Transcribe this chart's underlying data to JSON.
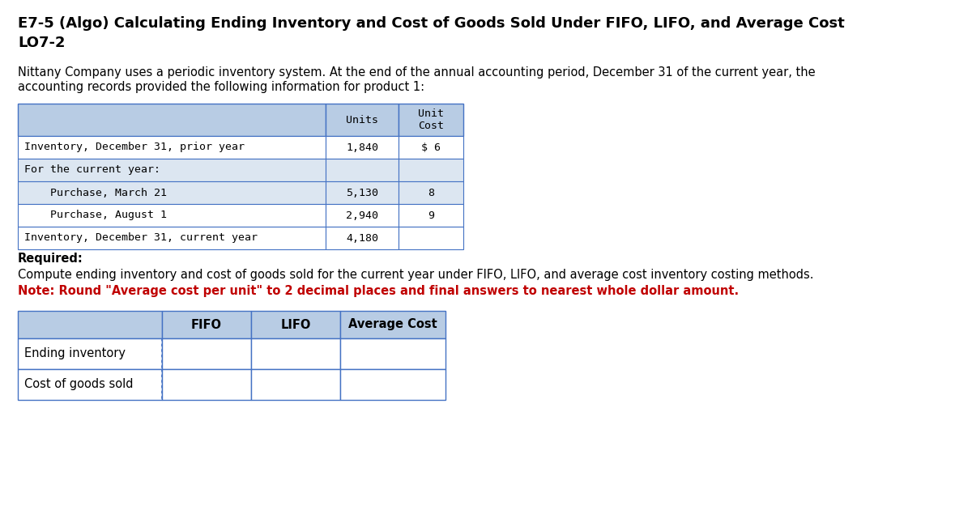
{
  "title_line1": "E7-5 (Algo) Calculating Ending Inventory and Cost of Goods Sold Under FIFO, LIFO, and Average Cost",
  "title_line2": "LO7-2",
  "description_line1": "Nittany Company uses a periodic inventory system. At the end of the annual accounting period, December 31 of the current year, the",
  "description_line2": "accounting records provided the following information for product 1:",
  "table1_header": [
    "",
    "Units",
    "Unit\nCost"
  ],
  "table1_rows": [
    [
      "Inventory, December 31, prior year",
      "1,840",
      "$ 6"
    ],
    [
      "For the current year:",
      "",
      ""
    ],
    [
      "    Purchase, March 21",
      "5,130",
      "8"
    ],
    [
      "    Purchase, August 1",
      "2,940",
      "9"
    ],
    [
      "Inventory, December 31, current year",
      "4,180",
      ""
    ]
  ],
  "required_label": "Required:",
  "note_line1": "Compute ending inventory and cost of goods sold for the current year under FIFO, LIFO, and average cost inventory costing methods.",
  "note_line2": "Note: Round \"Average cost per unit\" to 2 decimal places and final answers to nearest whole dollar amount.",
  "table2_header": [
    "",
    "FIFO",
    "LIFO",
    "Average Cost"
  ],
  "table2_rows": [
    [
      "Ending inventory",
      "",
      "",
      ""
    ],
    [
      "Cost of goods sold",
      "",
      "",
      ""
    ]
  ],
  "header_bg": "#b8cce4",
  "table1_row_bg_alt": "#dce6f1",
  "table1_row_bg": "#ffffff",
  "white": "#ffffff",
  "note_color": "#c00000",
  "border_color": "#4472c4",
  "text_color": "#000000",
  "bg_color": "#ffffff",
  "title_fontsize": 13,
  "body_fontsize": 10.5,
  "table_fontsize": 9.5,
  "table2_label_fontsize": 10.5
}
